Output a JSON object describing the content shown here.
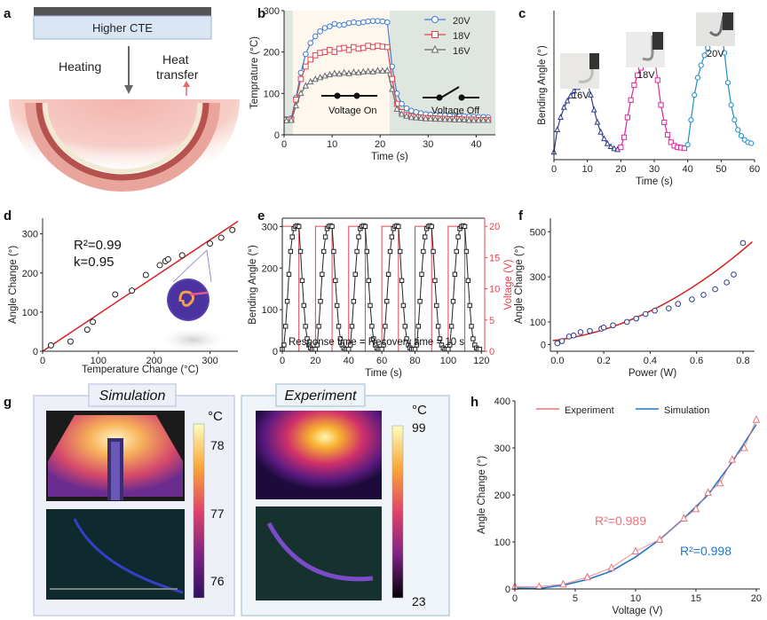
{
  "panel_labels": [
    "a",
    "b",
    "c",
    "d",
    "e",
    "f",
    "g",
    "h"
  ],
  "panel_a": {
    "layer_label": "Higher CTE",
    "heating_label": "Heating",
    "heat_transfer_line1": "Heat",
    "heat_transfer_line2": "transfer"
  },
  "panel_b_annotations": {
    "on": "Voltage On",
    "off": "Voltage Off"
  },
  "panel_c_photo_labels": [
    "16V",
    "18V",
    "20V"
  ],
  "panel_d_annotations": {
    "r2": "R²=0.99",
    "k": "k=0.95"
  },
  "panel_e_annotation": "Response time = Recovery time = 10 s",
  "panel_g": {
    "sim_title": "Simulation",
    "exp_title": "Experiment",
    "unit": "°C",
    "sim_ticks": [
      "78",
      "77",
      "76"
    ],
    "exp_ticks": [
      "99",
      "23"
    ]
  },
  "panel_h_annotations": {
    "exp_r2": "R²=0.989",
    "sim_r2": "R²=0.998"
  },
  "colors": {
    "blue": "#3f7fd0",
    "red": "#e0454f",
    "gray": "#6a6a6a",
    "navy": "#2e3a8c",
    "magenta": "#e0249a",
    "cyan": "#1a8fc9",
    "fitred": "#d42020",
    "simblue": "#1f78c8",
    "expred": "#e8737a"
  },
  "chart_data": [
    {
      "id": "b",
      "type": "line",
      "xlabel": "Time (s)",
      "ylabel": "Temprature (°C)",
      "xlim": [
        0,
        44
      ],
      "ylim": [
        0,
        300
      ],
      "xticks": [
        0,
        10,
        20,
        30,
        40
      ],
      "yticks": [
        0,
        100,
        200,
        300
      ],
      "legend": [
        "20V",
        "18V",
        "16V"
      ],
      "series": [
        {
          "name": "20V",
          "marker": "circle",
          "x": [
            0.5,
            1.5,
            2.5,
            3.5,
            4.5,
            5.5,
            6.5,
            7.5,
            8.5,
            9.5,
            10.5,
            11.5,
            12.5,
            13.5,
            14.5,
            15.5,
            16.5,
            17.5,
            18.5,
            19.5,
            20.5,
            21.5,
            22.5,
            23.5,
            24.5,
            25.5,
            26.5,
            27.5,
            28.5,
            29.5,
            30.5,
            31.5,
            32.5,
            33.5,
            34.5,
            35.5,
            36.5,
            37.5,
            38.5,
            39.5,
            40.5,
            41.5,
            42.5
          ],
          "y": [
            38,
            40,
            90,
            150,
            195,
            222,
            238,
            250,
            258,
            262,
            268,
            265,
            266,
            270,
            272,
            270,
            272,
            274,
            275,
            275,
            274,
            272,
            165,
            100,
            75,
            64,
            58,
            55,
            52,
            50,
            49,
            48,
            48,
            47,
            46,
            46,
            45,
            45,
            44,
            44,
            43,
            43,
            42
          ]
        },
        {
          "name": "18V",
          "marker": "square",
          "x": [
            0.5,
            1.5,
            2.5,
            3.5,
            4.5,
            5.5,
            6.5,
            7.5,
            8.5,
            9.5,
            10.5,
            11.5,
            12.5,
            13.5,
            14.5,
            15.5,
            16.5,
            17.5,
            18.5,
            19.5,
            20.5,
            21.5,
            22.5,
            23.5,
            24.5,
            25.5,
            26.5,
            27.5,
            28.5,
            29.5,
            30.5,
            31.5,
            32.5,
            33.5,
            34.5,
            35.5,
            36.5,
            37.5,
            38.5,
            39.5,
            40.5,
            41.5,
            42.5
          ],
          "y": [
            36,
            37,
            85,
            135,
            165,
            182,
            192,
            198,
            200,
            205,
            200,
            208,
            210,
            205,
            212,
            208,
            210,
            215,
            212,
            215,
            213,
            212,
            135,
            75,
            55,
            48,
            45,
            43,
            42,
            41,
            40,
            40,
            39,
            39,
            38,
            38,
            38,
            37,
            37,
            37,
            36,
            36,
            36
          ]
        },
        {
          "name": "16V",
          "marker": "triangle",
          "x": [
            0.5,
            1.5,
            2.5,
            3.5,
            4.5,
            5.5,
            6.5,
            7.5,
            8.5,
            9.5,
            10.5,
            11.5,
            12.5,
            13.5,
            14.5,
            15.5,
            16.5,
            17.5,
            18.5,
            19.5,
            20.5,
            21.5,
            22.5,
            23.5,
            24.5,
            25.5,
            26.5,
            27.5,
            28.5,
            29.5,
            30.5,
            31.5,
            32.5,
            33.5,
            34.5,
            35.5,
            36.5,
            37.5,
            38.5,
            39.5,
            40.5,
            41.5,
            42.5
          ],
          "y": [
            34,
            35,
            70,
            100,
            118,
            128,
            134,
            138,
            142,
            145,
            148,
            147,
            150,
            148,
            151,
            150,
            152,
            153,
            152,
            155,
            154,
            155,
            110,
            62,
            50,
            45,
            42,
            41,
            40,
            39,
            39,
            38,
            38,
            37,
            37,
            36,
            36,
            36,
            35,
            35,
            35,
            35,
            35
          ]
        }
      ]
    },
    {
      "id": "c",
      "type": "line",
      "xlabel": "Time (s)",
      "ylabel": "Bending Angle (°)",
      "xlim": [
        0,
        60
      ],
      "ylim": [
        0,
        300
      ],
      "xticks": [
        0,
        10,
        20,
        30,
        40,
        50,
        60
      ],
      "yticks": [],
      "series": [
        {
          "name": "16V",
          "marker": "triangle",
          "x": [
            0,
            1,
            2,
            3,
            4,
            5,
            6,
            7,
            8,
            9,
            10,
            11,
            12,
            13,
            14,
            15,
            16,
            17,
            18,
            19
          ],
          "y": [
            15,
            60,
            85,
            105,
            118,
            128,
            138,
            145,
            150,
            155,
            155,
            130,
            100,
            75,
            55,
            42,
            32,
            26,
            22,
            20
          ]
        },
        {
          "name": "18V",
          "marker": "square",
          "x": [
            20,
            21,
            22,
            23,
            24,
            25,
            26,
            27,
            28,
            29,
            30,
            31,
            32,
            33,
            34,
            35,
            36,
            37,
            38,
            39
          ],
          "y": [
            25,
            45,
            85,
            120,
            150,
            170,
            185,
            195,
            205,
            212,
            212,
            160,
            110,
            75,
            50,
            35,
            28,
            25,
            24,
            23
          ]
        },
        {
          "name": "20V",
          "marker": "circle",
          "x": [
            40,
            41,
            42,
            43,
            44,
            45,
            46,
            47,
            48,
            49,
            50,
            51,
            52,
            53,
            54,
            55,
            56,
            57,
            58,
            59
          ],
          "y": [
            30,
            80,
            130,
            165,
            190,
            210,
            225,
            240,
            250,
            258,
            262,
            215,
            155,
            110,
            80,
            60,
            48,
            40,
            35,
            33
          ]
        }
      ]
    },
    {
      "id": "d",
      "type": "scatter",
      "xlabel": "Temperature Change (°C)",
      "ylabel": "Angle Change (°)",
      "xlim": [
        0,
        350
      ],
      "ylim": [
        0,
        340
      ],
      "xticks": [
        0,
        100,
        200,
        300
      ],
      "yticks": [
        0,
        100,
        200,
        300
      ],
      "points": {
        "x": [
          15,
          50,
          80,
          90,
          130,
          160,
          185,
          210,
          220,
          225,
          250,
          300,
          320,
          340
        ],
        "y": [
          15,
          25,
          55,
          75,
          145,
          155,
          195,
          220,
          230,
          235,
          245,
          275,
          290,
          310
        ]
      },
      "fit": {
        "x": [
          0,
          350
        ],
        "y": [
          0,
          332
        ]
      }
    },
    {
      "id": "e",
      "type": "line",
      "xlabel": "Time (s)",
      "ylabel": "Bending Angle (°)",
      "y2label": "Voltage (V)",
      "xlim": [
        0,
        122
      ],
      "ylim": [
        0,
        320
      ],
      "y2lim": [
        0,
        21.3
      ],
      "xticks": [
        0,
        20,
        40,
        60,
        80,
        100,
        120
      ],
      "yticks": [
        0,
        100,
        200,
        300
      ],
      "y2ticks": [
        0,
        5,
        10,
        15,
        20
      ],
      "cycles": [
        0,
        20,
        40,
        60,
        80,
        100
      ],
      "cycle_angle": [
        5,
        15,
        60,
        120,
        185,
        240,
        275,
        295,
        300,
        302,
        300,
        240,
        170,
        110,
        60,
        30,
        15,
        8,
        5,
        5
      ],
      "voltage_on": 20
    },
    {
      "id": "f",
      "type": "scatter",
      "xlabel": "Power (W)",
      "ylabel": "Angle Change (°)",
      "xlim": [
        -0.03,
        0.85
      ],
      "ylim": [
        -30,
        560
      ],
      "xticks": [
        0.0,
        0.2,
        0.4,
        0.6,
        0.8
      ],
      "yticks": [
        0,
        100,
        300,
        500
      ],
      "points": {
        "x": [
          0.0,
          0.02,
          0.05,
          0.07,
          0.1,
          0.14,
          0.19,
          0.2,
          0.24,
          0.3,
          0.34,
          0.38,
          0.42,
          0.48,
          0.52,
          0.58,
          0.63,
          0.68,
          0.73,
          0.76,
          0.8
        ],
        "y": [
          5,
          15,
          35,
          40,
          55,
          60,
          70,
          75,
          85,
          100,
          115,
          135,
          150,
          160,
          180,
          200,
          220,
          245,
          275,
          310,
          450
        ]
      },
      "fit_poly": [
        20,
        140,
        450
      ]
    },
    {
      "id": "h",
      "type": "line",
      "xlabel": "Voltage (V)",
      "ylabel": "Angle Change (°)",
      "xlim": [
        0,
        20.3
      ],
      "ylim": [
        0,
        400
      ],
      "xticks": [
        0,
        5,
        10,
        15,
        20
      ],
      "yticks": [
        0,
        100,
        200,
        300,
        400
      ],
      "legend": [
        "Experiment",
        "Simulation"
      ],
      "experiment": {
        "x": [
          0,
          2,
          4,
          6,
          8,
          10,
          12,
          14,
          15,
          16,
          17,
          18,
          19,
          20
        ],
        "y": [
          5,
          5,
          10,
          25,
          45,
          80,
          105,
          150,
          170,
          205,
          225,
          275,
          300,
          360
        ]
      },
      "simulation_curve": {
        "x": [
          0,
          2,
          4,
          6,
          8,
          10,
          12,
          14,
          16,
          18,
          20
        ],
        "y": [
          2,
          1,
          8,
          20,
          38,
          68,
          105,
          150,
          200,
          270,
          350
        ]
      }
    }
  ]
}
